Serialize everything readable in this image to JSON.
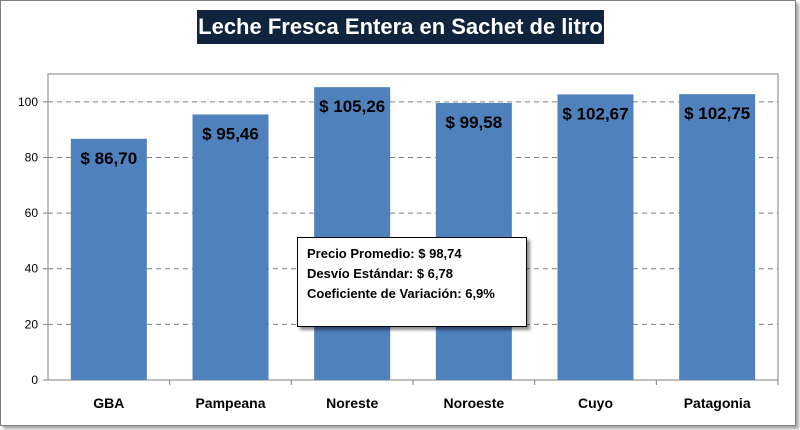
{
  "chart_data": {
    "type": "bar",
    "title": "Leche Fresca Entera en Sachet de litro",
    "categories": [
      "GBA",
      "Pampeana",
      "Noreste",
      "Noroeste",
      "Cuyo",
      "Patagonia"
    ],
    "values": [
      86.7,
      95.46,
      105.26,
      99.58,
      102.67,
      102.75
    ],
    "data_labels": [
      "$ 86,70",
      "$ 95,46",
      "$ 105,26",
      "$ 99,58",
      "$ 102,67",
      "$ 102,75"
    ],
    "yticks": [
      "0",
      "20",
      "40",
      "60",
      "80",
      "100"
    ],
    "ylim": [
      0,
      110
    ],
    "grid": "horizontal dashed",
    "bar_color": "#4f81bd",
    "xlabel": "",
    "ylabel": ""
  },
  "stats": {
    "line1": "Precio Promedio: $ 98,74",
    "line2": "Desvío Estándar: $ 6,78",
    "line3": "Coeficiente de Variación: 6,9%"
  },
  "colors": {
    "title_bg": "#10243e",
    "title_text": "#ffffff",
    "bar": "#4f81bd"
  }
}
